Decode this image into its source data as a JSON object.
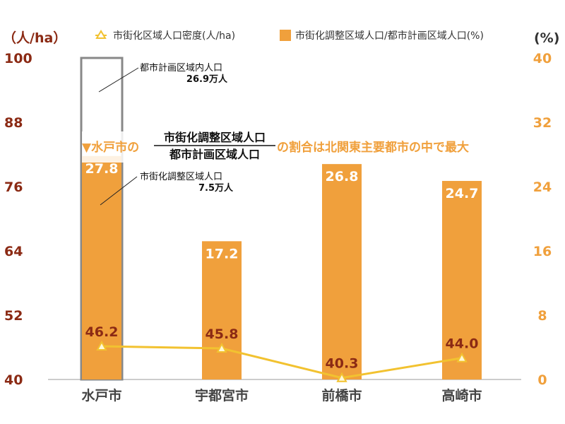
{
  "colors": {
    "bar": "#F0A03C",
    "line": "#F2C230",
    "left_axis_text": "#8B2A14",
    "right_axis_text": "#F0A03C",
    "headline": "#F0A03C",
    "outline_bar": "#888888"
  },
  "legend": {
    "line_label": "市街化区域人口密度(人/ha)",
    "bar_label": "市街化調整区域人口/都市計画区域人口(%)",
    "line_icon": "triangle-marker-icon",
    "bar_icon": "square-marker-icon"
  },
  "annotations": {
    "total_label": "都市計画区域内人口",
    "total_value": "26.9万人",
    "urbctrl_label": "市街化調整区域人口",
    "urbctrl_value": "7.5万人"
  },
  "headline": {
    "prefix": "▼水戸市の",
    "numerator": "市街化調整区域人口",
    "denominator": "都市計画区域人口",
    "suffix": "の割合は北関東主要都市の中で最大"
  },
  "chart_data": {
    "type": "bar",
    "categories": [
      "水戸市",
      "宇都宮市",
      "前橋市",
      "高崎市"
    ],
    "series": [
      {
        "name": "市街化調整区域人口/都市計画区域人口(%)",
        "axis": "right",
        "kind": "bar",
        "values": [
          27.8,
          17.2,
          26.8,
          24.7
        ]
      },
      {
        "name": "市街化区域人口密度(人/ha)",
        "axis": "left",
        "kind": "line",
        "values": [
          46.2,
          45.8,
          40.3,
          44.0
        ]
      }
    ],
    "left_axis": {
      "unit": "（人/ha）",
      "ylim": [
        40,
        100
      ],
      "ticks": [
        "40",
        "52",
        "64",
        "76",
        "88",
        "100"
      ]
    },
    "right_axis": {
      "unit": "(%)",
      "ylim": [
        0,
        40
      ],
      "ticks": [
        "0",
        "8",
        "16",
        "24",
        "32",
        "40"
      ]
    },
    "outline_bar": {
      "category": "水戸市",
      "axis": "left",
      "value": 100
    },
    "grid": false,
    "legend_position": "top"
  }
}
